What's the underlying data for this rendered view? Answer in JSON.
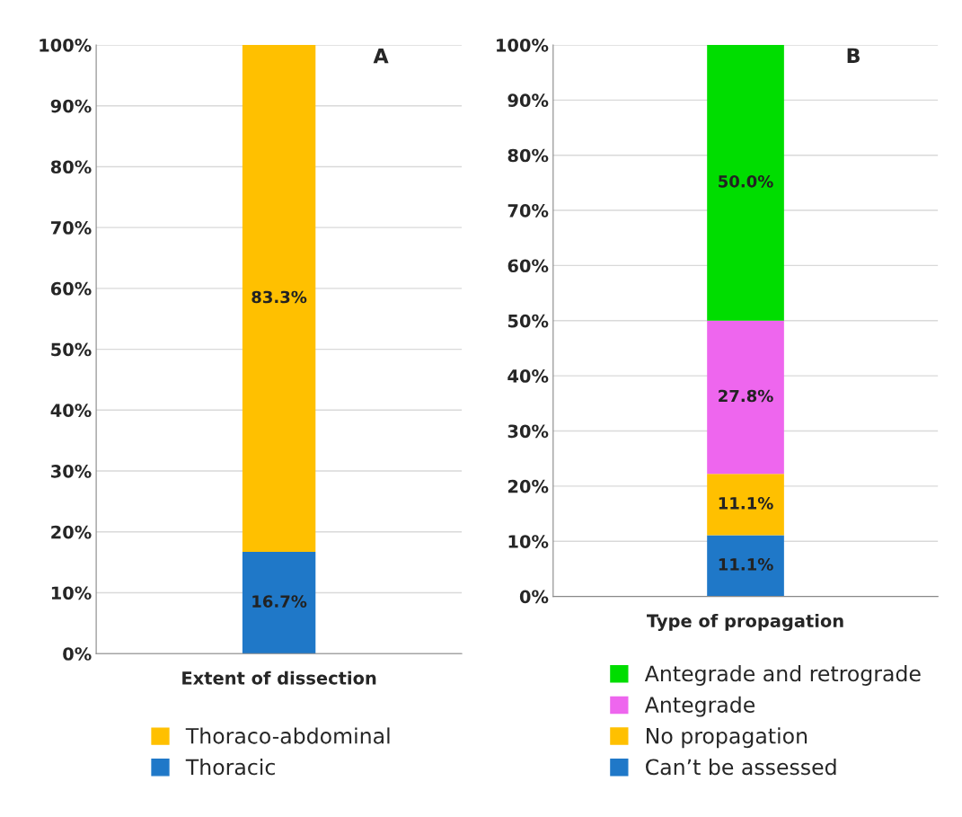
{
  "chart_data": [
    {
      "type": "bar",
      "title": "A",
      "categories": [
        "Extent of dissection"
      ],
      "stacked": true,
      "ylim": [
        0,
        100
      ],
      "yticks": [
        {
          "value": 0,
          "label": "0%"
        },
        {
          "value": 10,
          "label": "10%"
        },
        {
          "value": 20,
          "label": "20%"
        },
        {
          "value": 30,
          "label": "30%"
        },
        {
          "value": 40,
          "label": "40%"
        },
        {
          "value": 50,
          "label": "50%"
        },
        {
          "value": 60,
          "label": "60%"
        },
        {
          "value": 70,
          "label": "70%"
        },
        {
          "value": 80,
          "label": "80%"
        },
        {
          "value": 90,
          "label": "90%"
        },
        {
          "value": 100,
          "label": "100%"
        }
      ],
      "grid": "y",
      "legend": "bottom",
      "series": [
        {
          "name": "Thoracic",
          "color": "#1f78c8",
          "values": [
            16.7
          ],
          "value_labels": [
            "16.7%"
          ]
        },
        {
          "name": "Thoraco-abdominal",
          "color": "#ffc000",
          "values": [
            83.3
          ],
          "value_labels": [
            "83.3%"
          ]
        }
      ]
    },
    {
      "type": "bar",
      "title": "B",
      "categories": [
        "Type of propagation"
      ],
      "stacked": true,
      "ylim": [
        0,
        100
      ],
      "yticks": [
        {
          "value": 0,
          "label": "0%"
        },
        {
          "value": 10,
          "label": "10%"
        },
        {
          "value": 20,
          "label": "20%"
        },
        {
          "value": 30,
          "label": "30%"
        },
        {
          "value": 40,
          "label": "40%"
        },
        {
          "value": 50,
          "label": "50%"
        },
        {
          "value": 60,
          "label": "60%"
        },
        {
          "value": 70,
          "label": "70%"
        },
        {
          "value": 80,
          "label": "80%"
        },
        {
          "value": 90,
          "label": "90%"
        },
        {
          "value": 100,
          "label": "100%"
        }
      ],
      "grid": "y",
      "legend": "bottom",
      "series": [
        {
          "name": "Can’t be assessed",
          "color": "#1f78c8",
          "values": [
            11.1
          ],
          "value_labels": [
            "11.1%"
          ]
        },
        {
          "name": "No propagation",
          "color": "#ffc000",
          "values": [
            11.1
          ],
          "value_labels": [
            "11.1%"
          ]
        },
        {
          "name": "Antegrade",
          "color": "#ee66ee",
          "values": [
            27.8
          ],
          "value_labels": [
            "27.8%"
          ]
        },
        {
          "name": "Antegrade and retrograde",
          "color": "#00dd00",
          "values": [
            50.0
          ],
          "value_labels": [
            "50.0%"
          ]
        }
      ]
    }
  ]
}
